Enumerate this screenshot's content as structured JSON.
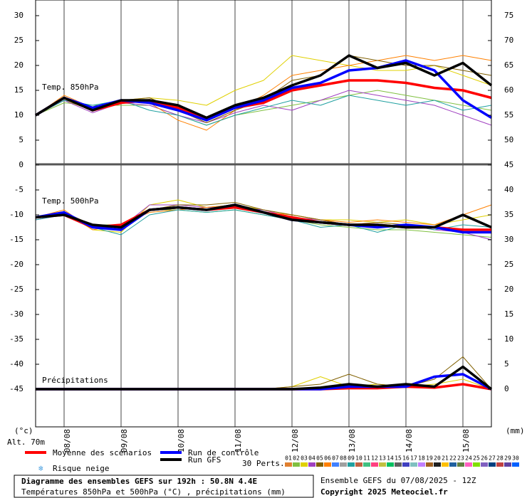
{
  "chart_data": {
    "type": "line",
    "title": "Diagramme des ensembles GEFS sur 192h : 50.8N 4.4E",
    "subtitle": "Températures 850hPa et 500hPa (°C) , précipitations (mm)",
    "source": "Ensemble GEFS du 07/08/2025 - 12Z",
    "copyright": "Copyright 2025 Meteociel.fr",
    "ylabel": "(°c)",
    "y2label": "(mm)",
    "altitude": "Alt. 70m",
    "panel_labels": [
      "Temp. 850hPa",
      "Temp. 500hPa",
      "Précipitations"
    ],
    "snow_label": "Risque neige",
    "x": [
      0,
      12,
      24,
      36,
      48,
      60,
      72,
      84,
      96,
      108,
      120,
      132,
      144,
      156,
      168,
      180,
      192
    ],
    "xlim": [
      0,
      192
    ],
    "xticks": [
      {
        "value": 12,
        "label": "08/08"
      },
      {
        "value": 36,
        "label": "09/08"
      },
      {
        "value": 60,
        "label": "10/08"
      },
      {
        "value": 84,
        "label": "11/08"
      },
      {
        "value": 108,
        "label": "12/08"
      },
      {
        "value": 132,
        "label": "13/08"
      },
      {
        "value": 156,
        "label": "14/08"
      },
      {
        "value": 180,
        "label": "15/08"
      }
    ],
    "ylim": [
      -52.5,
      33
    ],
    "yticks": [
      30,
      25,
      20,
      15,
      10,
      5,
      0,
      -5,
      -10,
      -15,
      -20,
      -25,
      -30,
      -35,
      -40,
      -45
    ],
    "y2lim": [
      -7.5,
      78
    ],
    "y2ticks": [
      75,
      70,
      65,
      60,
      55,
      50,
      45,
      40,
      35,
      30,
      25,
      20,
      15,
      10,
      5,
      0
    ],
    "perturbations": [
      {
        "name": "01",
        "color": "#e0d000",
        "values": [
          10,
          13,
          11,
          13,
          13.5,
          13,
          12,
          15,
          17,
          22,
          21,
          20,
          19,
          19,
          20,
          18,
          16
        ]
      },
      {
        "name": "02",
        "color": "#80c040",
        "values": [
          10,
          12.5,
          12,
          12,
          12,
          10,
          8,
          10,
          11,
          12,
          13,
          14,
          15,
          14,
          13,
          12,
          11
        ]
      },
      {
        "name": "03",
        "color": "#a040c0",
        "values": [
          10,
          13,
          10.5,
          12.5,
          12,
          10,
          8.5,
          10.5,
          12,
          11,
          13,
          15,
          14,
          13,
          12,
          10,
          8
        ]
      },
      {
        "name": "04",
        "color": "#ff8000",
        "values": [
          10,
          14,
          11.5,
          13,
          12.5,
          9,
          7,
          11,
          14,
          18,
          19,
          20,
          21,
          22,
          21,
          22,
          21
        ]
      },
      {
        "name": "05",
        "color": "#20a0a0",
        "values": [
          10,
          13,
          12,
          13,
          11,
          10,
          8,
          10,
          11.5,
          13,
          12,
          14,
          13,
          12,
          13,
          11,
          12
        ]
      },
      {
        "name": "06",
        "color": "#806000",
        "values": [
          10,
          13.5,
          11,
          13,
          13.5,
          11,
          8.5,
          11,
          13,
          17,
          18,
          22,
          21,
          20,
          20,
          19,
          18
        ]
      },
      {
        "name": "01",
        "color": "#e0d000",
        "values": [
          -10.5,
          -9.5,
          -13,
          -13.5,
          -8,
          -7,
          -8.5,
          -8,
          -9,
          -10,
          -11,
          -11,
          -11.5,
          -11,
          -12,
          -11,
          -10
        ]
      },
      {
        "name": "02",
        "color": "#80c040",
        "values": [
          -10.5,
          -10,
          -12,
          -12,
          -9,
          -9,
          -9.5,
          -9,
          -10,
          -11,
          -12,
          -12.5,
          -13,
          -13,
          -13.5,
          -14,
          -14.5
        ]
      },
      {
        "name": "03",
        "color": "#a040c0",
        "values": [
          -11,
          -10,
          -12,
          -12.5,
          -8,
          -8,
          -8.5,
          -8.5,
          -9,
          -10.5,
          -11,
          -12,
          -12.5,
          -12,
          -13,
          -13.5,
          -15
        ]
      },
      {
        "name": "04",
        "color": "#ff8000",
        "values": [
          -10.5,
          -9,
          -13,
          -12,
          -9.5,
          -9,
          -8.5,
          -8,
          -9.5,
          -10,
          -11,
          -11.5,
          -11,
          -11.5,
          -12,
          -10,
          -8
        ]
      },
      {
        "name": "05",
        "color": "#20a0a0",
        "values": [
          -11,
          -10,
          -12.5,
          -14,
          -10,
          -9,
          -9.5,
          -9,
          -10,
          -11,
          -12.5,
          -12,
          -13.5,
          -12,
          -13,
          -12,
          -12.5
        ]
      },
      {
        "name": "06",
        "color": "#806000",
        "values": [
          -10.5,
          -9.5,
          -12,
          -13,
          -9,
          -8,
          -8,
          -7.5,
          -9,
          -10,
          -11,
          -12,
          -11.5,
          -12,
          -12.5,
          -13,
          -13
        ]
      },
      {
        "name": "01",
        "color": "#e0d000",
        "axis": "y2",
        "values": [
          0,
          0,
          0,
          0,
          0,
          0,
          0,
          0,
          0,
          0.5,
          2.5,
          0.5,
          1,
          0.5,
          1,
          2,
          0
        ]
      },
      {
        "name": "06",
        "color": "#806000",
        "axis": "y2",
        "values": [
          0,
          0,
          0,
          0,
          0,
          0,
          0,
          0,
          0,
          0.5,
          1,
          3,
          1,
          0.5,
          2,
          6.5,
          0
        ]
      }
    ],
    "series": [
      {
        "name": "Moyenne des scénarios",
        "color": "#ff0000",
        "values": [
          10,
          13.5,
          11,
          12.5,
          13,
          11.5,
          9.5,
          11.5,
          12.5,
          15,
          16,
          17,
          17,
          16.5,
          15.5,
          15,
          13.5
        ]
      },
      {
        "name": "Run de contrôle",
        "color": "#0000ff",
        "values": [
          10,
          13.5,
          11.5,
          13,
          12.5,
          11,
          9,
          11.5,
          13,
          15.5,
          16.5,
          19,
          19.5,
          21,
          19,
          13,
          9.5
        ]
      },
      {
        "name": "Run GFS",
        "color": "#000000",
        "values": [
          10,
          13.5,
          11,
          13,
          13,
          12,
          9.5,
          12,
          13.5,
          16,
          18,
          22,
          19.5,
          20.5,
          18,
          20.5,
          16
        ]
      },
      {
        "name": "Moyenne des scénarios",
        "color": "#ff0000",
        "values": [
          -10.5,
          -10,
          -12.5,
          -12,
          -9,
          -8.5,
          -9,
          -8.5,
          -9.5,
          -10.5,
          -11.5,
          -12,
          -12,
          -12.5,
          -12.5,
          -13,
          -13
        ]
      },
      {
        "name": "Run de contrôle",
        "color": "#0000ff",
        "values": [
          -10.5,
          -9.5,
          -12.5,
          -13,
          -9,
          -8.5,
          -9,
          -8,
          -9.5,
          -11,
          -11.5,
          -12,
          -12.5,
          -12,
          -12.5,
          -13.5,
          -13.5
        ]
      },
      {
        "name": "Run GFS",
        "color": "#000000",
        "values": [
          -10.5,
          -10,
          -12,
          -12.5,
          -9,
          -8.5,
          -9,
          -8,
          -9.5,
          -11,
          -11.5,
          -12,
          -12,
          -12.5,
          -12.5,
          -10,
          -12.5
        ]
      },
      {
        "name": "Moyenne des scénarios",
        "color": "#ff0000",
        "axis": "y2",
        "values": [
          0,
          0,
          0,
          0,
          0,
          0,
          0,
          0,
          0,
          0,
          0,
          0.2,
          0.2,
          0.5,
          0.3,
          1,
          0
        ]
      },
      {
        "name": "Run de contrôle",
        "color": "#0000ff",
        "axis": "y2",
        "values": [
          0,
          0,
          0,
          0,
          0,
          0,
          0,
          0,
          0,
          0,
          0,
          0.5,
          0.5,
          0.5,
          2.5,
          3,
          0
        ]
      },
      {
        "name": "Run GFS",
        "color": "#000000",
        "axis": "y2",
        "values": [
          0,
          0,
          0,
          0,
          0,
          0,
          0,
          0,
          0,
          0,
          0.3,
          1,
          0.5,
          1,
          0.5,
          4.5,
          0
        ]
      }
    ],
    "perturbation_count": "30 Perts.",
    "perturbation_legend": [
      {
        "name": "01",
        "color": "#e08030"
      },
      {
        "name": "02",
        "color": "#80c040"
      },
      {
        "name": "03",
        "color": "#e0d000"
      },
      {
        "name": "04",
        "color": "#a040c0"
      },
      {
        "name": "05",
        "color": "#806000"
      },
      {
        "name": "06",
        "color": "#ff8000"
      },
      {
        "name": "07",
        "color": "#4080ff"
      },
      {
        "name": "08",
        "color": "#a0a0a0"
      },
      {
        "name": "09",
        "color": "#20a0a0"
      },
      {
        "name": "10",
        "color": "#c06040"
      },
      {
        "name": "11",
        "color": "#40c080"
      },
      {
        "name": "12",
        "color": "#ff4080"
      },
      {
        "name": "13",
        "color": "#c0c040"
      },
      {
        "name": "14",
        "color": "#00c060"
      },
      {
        "name": "15",
        "color": "#606060"
      },
      {
        "name": "16",
        "color": "#4040c0"
      },
      {
        "name": "17",
        "color": "#80c0c0"
      },
      {
        "name": "18",
        "color": "#c080ff"
      },
      {
        "name": "19",
        "color": "#a06020"
      },
      {
        "name": "20",
        "color": "#202020"
      },
      {
        "name": "21",
        "color": "#ffc000"
      },
      {
        "name": "22",
        "color": "#2060a0"
      },
      {
        "name": "23",
        "color": "#608040"
      },
      {
        "name": "24",
        "color": "#ff60c0"
      },
      {
        "name": "25",
        "color": "#80e000"
      },
      {
        "name": "26",
        "color": "#8060c0"
      },
      {
        "name": "27",
        "color": "#004080"
      },
      {
        "name": "28",
        "color": "#c04040"
      },
      {
        "name": "29",
        "color": "#6040a0"
      },
      {
        "name": "30",
        "color": "#0060ff"
      }
    ]
  }
}
